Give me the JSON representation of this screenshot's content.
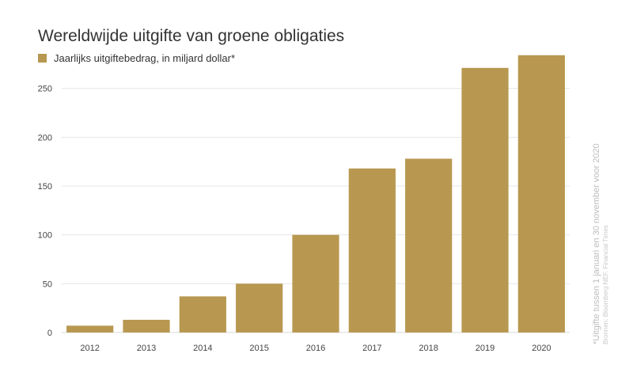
{
  "chart_data": {
    "type": "bar",
    "title": "Wereldwijde uitgifte van groene obligaties",
    "legend": [
      "Jaarlijks uitgiftebedrag, in miljard dollar*"
    ],
    "categories": [
      "2012",
      "2013",
      "2014",
      "2015",
      "2016",
      "2017",
      "2018",
      "2019",
      "2020"
    ],
    "series": [
      {
        "name": "Jaarlijks uitgiftebedrag, in miljard dollar*",
        "values": [
          7,
          13,
          37,
          50,
          100,
          168,
          178,
          271,
          284
        ]
      }
    ],
    "ylim": [
      0,
      300
    ],
    "yticks": [
      "0",
      "50",
      "100",
      "150",
      "200",
      "250"
    ],
    "grid": true,
    "legend_position": "top-left",
    "colors": {
      "bar": "#b89850",
      "grid": "#e6e6e6",
      "axis": "#d9d9d9"
    },
    "footnote": "*Uitgifte tussen 1 januari en 30 november voor 2020",
    "source": "Bronnen: Bloomberg NEF, Financial Times"
  }
}
